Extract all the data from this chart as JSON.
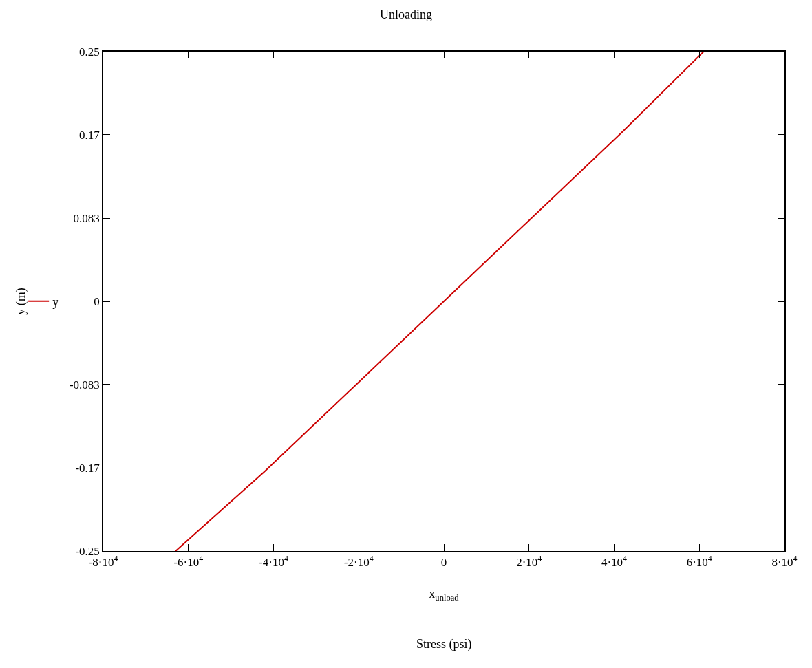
{
  "chart_data": {
    "type": "line",
    "title": "Unloading",
    "xlabel": "x$_{unload}$",
    "ylabel": "y (m)",
    "annotations": [
      "Stress (psi)"
    ],
    "series": [
      {
        "name": "y",
        "color": "#cc0000",
        "x": [
          -63000,
          -42000,
          0,
          42000,
          61000
        ],
        "values": [
          -0.25,
          -0.17,
          0,
          0.17,
          0.25
        ]
      }
    ],
    "xlim": [
      -80000,
      80000
    ],
    "xticks": [
      {
        "value": -80000,
        "label": "-8·10$^{4}$"
      },
      {
        "value": -60000,
        "label": "-6·10$^{4}$"
      },
      {
        "value": -40000,
        "label": "-4·10$^{4}$"
      },
      {
        "value": -20000,
        "label": "-2·10$^{4}$"
      },
      0,
      {
        "value": 20000,
        "label": "2·10$^{4}$"
      },
      {
        "value": 40000,
        "label": "4·10$^{4}$"
      },
      {
        "value": 60000,
        "label": "6·10$^{4}$"
      },
      {
        "value": 80000,
        "label": "8·10$^{4}$"
      }
    ],
    "ylim": [
      -0.25,
      0.25
    ],
    "yticks": [
      -0.25,
      {
        "value": -0.1667,
        "label": "-0.17"
      },
      {
        "value": -0.0833,
        "label": "-0.083"
      },
      0,
      {
        "value": 0.0833,
        "label": "0.083"
      },
      {
        "value": 0.1667,
        "label": "0.17"
      },
      0.25
    ],
    "legend": "left",
    "marker": "none",
    "line_style": "solid"
  }
}
